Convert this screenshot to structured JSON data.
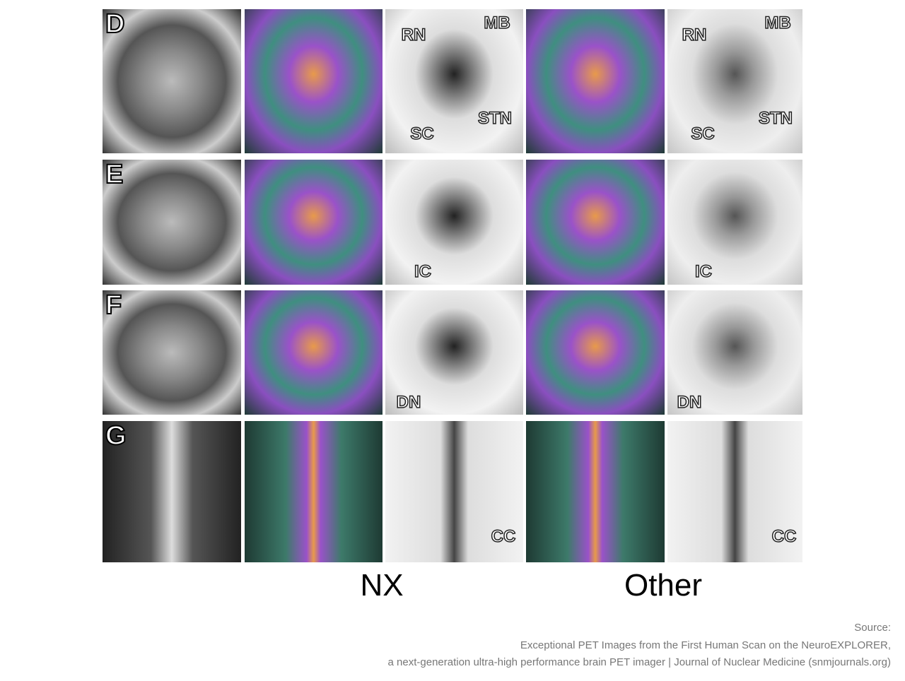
{
  "rows": [
    {
      "letter": "D",
      "annotations": [
        "RN",
        "MB",
        "SC",
        "STN"
      ]
    },
    {
      "letter": "E",
      "annotations": [
        "IC"
      ]
    },
    {
      "letter": "F",
      "annotations": [
        "DN"
      ]
    },
    {
      "letter": "G",
      "annotations": [
        "CC"
      ]
    }
  ],
  "column_labels": {
    "nx": "NX",
    "other": "Other"
  },
  "source": {
    "heading": "Source:",
    "line1": "Exceptional PET Images from the First Human Scan on the NeuroEXPLORER,",
    "line2": "a next-generation ultra-high performance brain PET imager  | Journal of Nuclear Medicine (snmjournals.org)"
  }
}
